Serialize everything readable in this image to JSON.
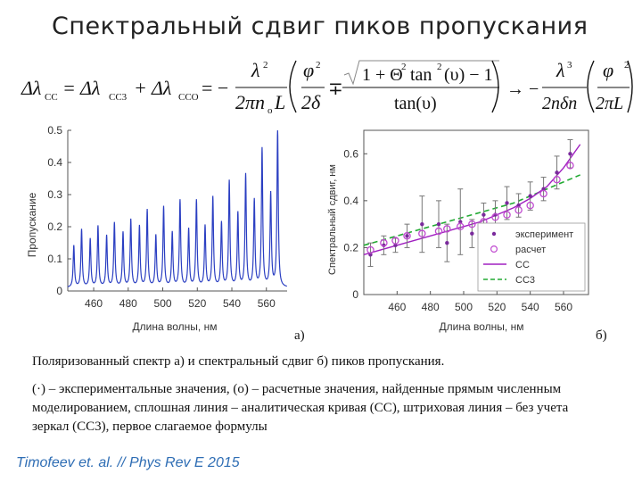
{
  "slide": {
    "title": "Спектральный сдвиг пиков пропускания",
    "formula": {
      "lhs": "Δλ",
      "lhs_sub": "СС",
      "eq": "= Δλ",
      "t1_sub": "СС3",
      "plus": "+ Δλ",
      "t2_sub": "ССО",
      "minus": "= −",
      "frac1_num": "λ",
      "frac1_num_sup": "2",
      "frac1_den": "2πn",
      "frac1_den_sub": "o",
      "frac1_den_tail": "L",
      "phi_num": "φ",
      "phi_sup": "2",
      "phi_den": "2δ",
      "mp": "∓",
      "sqrt_body": "1 + Θ",
      "sqrt_theta_sup": "2",
      "sqrt_tan": "tan",
      "sqrt_tan_sup": "2",
      "sqrt_arg": "(υ) − 1",
      "tan_den": "tan(υ)",
      "arrow": "→ −",
      "frac3_num": "λ",
      "frac3_num_sup": "3",
      "frac3_den": "2nδn",
      "phi2_num": "φ",
      "phi2_den": "2πL",
      "outer_sup": "2"
    },
    "label_a": "а)",
    "label_b": "б)",
    "caption": "Поляризованный спектр а) и спектральный сдвиг б) пиков пропускания.",
    "notes": "(·) – экспериментальные значения, (о) – расчетные значения, найденные прямым численным моделированием, сплошная линия – аналитическая кривая (СС), штриховая линия – без учета зеркал (СС3), первое слагаемое формулы",
    "citation": "Timofeev et. al. // Phys Rev E 2015"
  },
  "chart_data": [
    {
      "type": "line",
      "xlabel": "Длина волны, нм",
      "ylabel": "Пропускание",
      "xlim": [
        445,
        572
      ],
      "ylim": [
        0,
        0.5
      ],
      "xticks": [
        460,
        480,
        500,
        520,
        540,
        560
      ],
      "yticks": [
        0,
        0.1,
        0.2,
        0.3,
        0.4,
        0.5
      ],
      "baseline": 0.01,
      "peak_width_nm": 0.9,
      "peaks": [
        {
          "x": 448.5,
          "y": 0.13
        },
        {
          "x": 453.0,
          "y": 0.18
        },
        {
          "x": 458.0,
          "y": 0.15
        },
        {
          "x": 462.5,
          "y": 0.19
        },
        {
          "x": 467.5,
          "y": 0.16
        },
        {
          "x": 472.0,
          "y": 0.2
        },
        {
          "x": 477.0,
          "y": 0.17
        },
        {
          "x": 481.5,
          "y": 0.21
        },
        {
          "x": 486.5,
          "y": 0.19
        },
        {
          "x": 491.0,
          "y": 0.24
        },
        {
          "x": 496.0,
          "y": 0.16
        },
        {
          "x": 500.5,
          "y": 0.25
        },
        {
          "x": 505.5,
          "y": 0.17
        },
        {
          "x": 510.0,
          "y": 0.27
        },
        {
          "x": 515.0,
          "y": 0.18
        },
        {
          "x": 519.5,
          "y": 0.27
        },
        {
          "x": 524.5,
          "y": 0.19
        },
        {
          "x": 529.0,
          "y": 0.28
        },
        {
          "x": 534.0,
          "y": 0.2
        },
        {
          "x": 538.5,
          "y": 0.33
        },
        {
          "x": 543.5,
          "y": 0.23
        },
        {
          "x": 548.0,
          "y": 0.35
        },
        {
          "x": 553.0,
          "y": 0.27
        },
        {
          "x": 557.5,
          "y": 0.43
        },
        {
          "x": 562.5,
          "y": 0.29
        },
        {
          "x": 566.5,
          "y": 0.49
        }
      ]
    },
    {
      "type": "scatter",
      "xlabel": "Длина волны, нм",
      "ylabel": "Спектральный сдвиг, нм",
      "xlim": [
        440,
        575
      ],
      "ylim": [
        0,
        0.7
      ],
      "xticks": [
        460,
        480,
        500,
        520,
        540,
        560
      ],
      "yticks": [
        0,
        0.2,
        0.4,
        0.6
      ],
      "legend": {
        "location": "lower-right",
        "entries": [
          "эксперимент",
          "расчет",
          "СС",
          "СС3"
        ]
      },
      "series": [
        {
          "name": "эксперимент",
          "x": [
            444,
            452,
            459,
            466,
            475,
            485,
            490,
            498,
            505,
            512,
            519,
            526,
            533,
            540,
            548,
            556,
            564
          ],
          "y": [
            0.17,
            0.21,
            0.21,
            0.25,
            0.3,
            0.3,
            0.22,
            0.31,
            0.26,
            0.34,
            0.34,
            0.39,
            0.38,
            0.42,
            0.45,
            0.52,
            0.6
          ],
          "err": [
            0.05,
            0.04,
            0.03,
            0.05,
            0.12,
            0.1,
            0.08,
            0.14,
            0.06,
            0.05,
            0.06,
            0.07,
            0.05,
            0.06,
            0.05,
            0.07,
            0.06
          ]
        },
        {
          "name": "расчет",
          "x": [
            444,
            452,
            459,
            466,
            475,
            485,
            490,
            498,
            505,
            512,
            519,
            526,
            533,
            540,
            548,
            556,
            564
          ],
          "y": [
            0.19,
            0.22,
            0.23,
            0.25,
            0.26,
            0.27,
            0.28,
            0.29,
            0.3,
            0.31,
            0.33,
            0.34,
            0.36,
            0.38,
            0.43,
            0.49,
            0.55
          ]
        },
        {
          "name": "СС",
          "x": [
            440,
            450,
            460,
            470,
            480,
            490,
            500,
            510,
            520,
            530,
            540,
            550,
            560,
            570
          ],
          "y": [
            0.17,
            0.19,
            0.21,
            0.23,
            0.25,
            0.27,
            0.29,
            0.31,
            0.34,
            0.37,
            0.41,
            0.46,
            0.54,
            0.64
          ]
        },
        {
          "name": "СС3",
          "x": [
            440,
            450,
            460,
            470,
            480,
            490,
            500,
            510,
            520,
            530,
            540,
            550,
            560,
            570
          ],
          "y": [
            0.21,
            0.23,
            0.25,
            0.27,
            0.29,
            0.31,
            0.33,
            0.35,
            0.37,
            0.39,
            0.42,
            0.45,
            0.48,
            0.51
          ]
        }
      ]
    }
  ],
  "colors": {
    "spectrum": "#2b3fc2",
    "experiment": "#7a2a9c",
    "calc": "#c04ad0",
    "cc": "#a020c0",
    "cc3": "#22aa33",
    "errorbar": "#777777",
    "citation": "#2e6db4"
  }
}
